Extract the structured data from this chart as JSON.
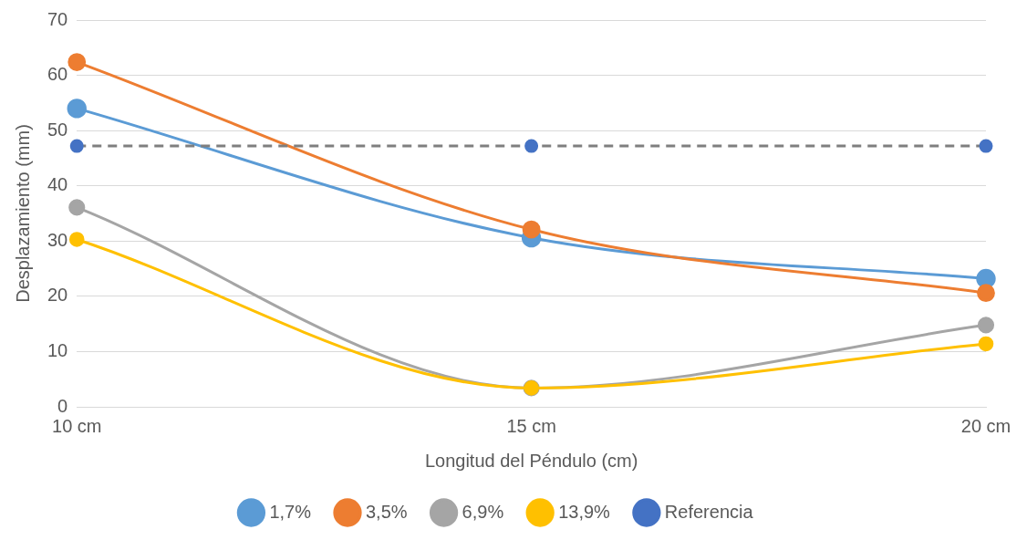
{
  "chart_data": {
    "type": "line",
    "xlabel": "Longitud del Péndulo (cm)",
    "ylabel": "Desplazamiento (mm)",
    "categories": [
      "10 cm",
      "15 cm",
      "20 cm"
    ],
    "series": [
      {
        "name": "1,7%",
        "color": "#5b9bd5",
        "values": [
          54.0,
          30.6,
          23.2
        ]
      },
      {
        "name": "3,5%",
        "color": "#ed7d31",
        "values": [
          62.4,
          32.1,
          20.6
        ]
      },
      {
        "name": "6,9%",
        "color": "#a5a5a5",
        "values": [
          36.1,
          3.4,
          14.8
        ]
      },
      {
        "name": "13,9%",
        "color": "#ffc000",
        "values": [
          30.3,
          3.4,
          11.4
        ]
      },
      {
        "name": "Referencia",
        "color": "#7f7f7f",
        "colors": [
          "#4472c4",
          "#4472c4",
          "#4472c4"
        ],
        "line_style": "dashed",
        "values": [
          47.2,
          47.2,
          47.2
        ]
      }
    ],
    "ylim": [
      0,
      70
    ],
    "yticks": [
      0,
      10,
      20,
      30,
      40,
      50,
      60,
      70
    ],
    "grid": "y",
    "legend": "bottom",
    "marker": "circle",
    "line_style": "solid"
  }
}
